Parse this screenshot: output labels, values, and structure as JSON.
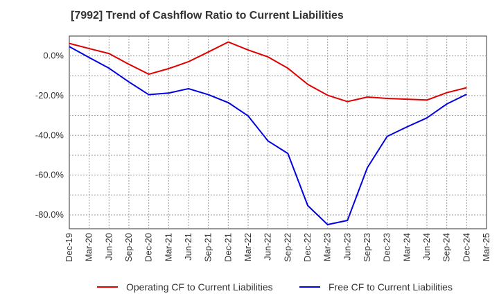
{
  "chart_data": {
    "type": "line",
    "title": "[7992]  Trend of Cashflow Ratio to Current Liabilities",
    "xlabel": "",
    "ylabel": "",
    "x": [
      "Dec-19",
      "Mar-20",
      "Jun-20",
      "Sep-20",
      "Dec-20",
      "Mar-21",
      "Jun-21",
      "Sep-21",
      "Dec-21",
      "Mar-22",
      "Jun-22",
      "Sep-22",
      "Dec-22",
      "Mar-23",
      "Jun-23",
      "Sep-23",
      "Dec-23",
      "Mar-24",
      "Jun-24",
      "Sep-24",
      "Dec-24"
    ],
    "x_ticks": [
      "Dec-19",
      "Mar-20",
      "Jun-20",
      "Sep-20",
      "Dec-20",
      "Mar-21",
      "Jun-21",
      "Sep-21",
      "Dec-21",
      "Mar-22",
      "Jun-22",
      "Sep-22",
      "Dec-22",
      "Mar-23",
      "Jun-23",
      "Sep-23",
      "Dec-23",
      "Mar-24",
      "Jun-24",
      "Sep-24",
      "Dec-24",
      "Mar-25"
    ],
    "y_ticks": [
      "0.0%",
      "-20.0%",
      "-40.0%",
      "-60.0%",
      "-80.0%"
    ],
    "y_tick_values": [
      0,
      -20,
      -40,
      -60,
      -80
    ],
    "ylim": [
      -87,
      10
    ],
    "grid": true,
    "legend_position": "bottom",
    "series": [
      {
        "name": "Operating CF to Current Liabilities",
        "color": "#e00000",
        "values": [
          6.3,
          3.7,
          1.2,
          -4.2,
          -9.2,
          -6.4,
          -2.9,
          2.0,
          7.0,
          3.0,
          -0.5,
          -6.2,
          -14.3,
          -19.8,
          -23.0,
          -20.7,
          -21.4,
          -21.8,
          -22.2,
          -18.5,
          -16.0
        ]
      },
      {
        "name": "Free CF to Current Liabilities",
        "color": "#0000e0",
        "values": [
          4.7,
          -0.8,
          -6.2,
          -13.1,
          -19.5,
          -18.7,
          -16.5,
          -19.5,
          -23.5,
          -30.2,
          -42.8,
          -49.1,
          -75.3,
          -84.9,
          -82.8,
          -56.3,
          -40.5,
          -35.7,
          -31.2,
          -24.2,
          -19.3
        ]
      }
    ]
  }
}
